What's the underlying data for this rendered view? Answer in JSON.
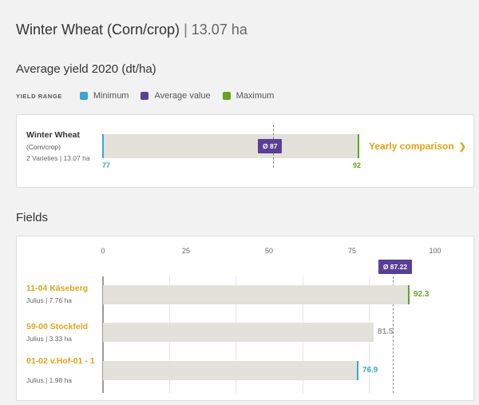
{
  "header": {
    "crop": "Winter Wheat (Corn/crop)",
    "separator": "|",
    "area": "13.07 ha"
  },
  "yield_section": {
    "title": "Average yield 2020 (dt/ha)",
    "legend_label": "YIELD RANGE",
    "legend": [
      {
        "label": "Minimum",
        "color": "#3ba6d1"
      },
      {
        "label": "Average value",
        "color": "#5a3f96"
      },
      {
        "label": "Maximum",
        "color": "#65a321"
      }
    ]
  },
  "crop_summary": {
    "name": "Winter Wheat",
    "sub": "(Corn/crop)",
    "meta": "2 Varieties | 13.07 ha",
    "min_value": 77,
    "min_label": "77",
    "avg_value": 87,
    "avg_label": "Ø 87",
    "max_value": 92,
    "max_label": "92",
    "link_label": "Yearly comparison",
    "link_icon": "chevron-right-icon"
  },
  "fields_section": {
    "title": "Fields"
  },
  "chart_data": {
    "type": "bar",
    "orientation": "horizontal",
    "x_ticks": [
      "0",
      "25",
      "50",
      "75",
      "100"
    ],
    "xlim": [
      0,
      100
    ],
    "grid": true,
    "average": {
      "value": 87.22,
      "label": "Ø 87.22"
    },
    "rows": [
      {
        "name": "11-04 Käseberg",
        "meta": "Julius | 7.76 ha",
        "value": 92.3,
        "label": "92.3",
        "status": "max",
        "color": "#65a321"
      },
      {
        "name": "59-00 Stockfeld",
        "meta": "Julius | 3.33 ha",
        "value": 81.5,
        "label": "81.5",
        "status": "none",
        "color": "#999999"
      },
      {
        "name": "01-02 v.Hof-01 - 1",
        "meta": "Julius | 1.98 ha",
        "value": 76.9,
        "label": "76.9",
        "status": "min",
        "color": "#3ba6d1"
      }
    ]
  }
}
